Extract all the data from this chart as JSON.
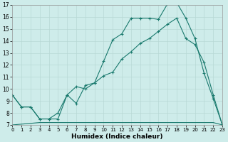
{
  "xlabel": "Humidex (Indice chaleur)",
  "xlim": [
    0,
    23
  ],
  "ylim": [
    7,
    17
  ],
  "background_color": "#ceecea",
  "grid_color": "#b8d8d5",
  "line_color": "#1a7a6e",
  "line1_x": [
    0,
    1,
    2,
    3,
    4,
    5,
    6,
    7,
    8,
    9,
    10,
    11,
    12,
    13,
    14,
    15,
    16,
    17,
    18,
    19,
    20,
    21,
    22,
    23
  ],
  "line1_y": [
    9.5,
    8.5,
    8.5,
    7.5,
    7.5,
    7.5,
    9.5,
    8.8,
    10.3,
    10.5,
    12.3,
    14.1,
    14.6,
    15.9,
    15.9,
    15.9,
    15.8,
    17.1,
    17.2,
    15.9,
    14.2,
    11.3,
    9.2,
    7.0
  ],
  "line2_x": [
    0,
    1,
    2,
    3,
    4,
    5,
    6,
    7,
    8,
    9,
    10,
    11,
    12,
    13,
    14,
    15,
    16,
    17,
    18,
    19,
    20,
    21,
    22,
    23
  ],
  "line2_y": [
    9.5,
    8.5,
    8.5,
    7.5,
    7.5,
    8.0,
    9.5,
    10.2,
    10.0,
    10.5,
    11.1,
    11.4,
    12.5,
    13.1,
    13.8,
    14.2,
    14.8,
    15.4,
    15.9,
    14.2,
    13.7,
    12.2,
    9.5,
    7.0
  ],
  "line3_x": [
    0,
    3,
    9,
    19,
    22,
    23
  ],
  "line3_y": [
    7.0,
    7.2,
    7.2,
    7.2,
    7.2,
    7.0
  ],
  "xticks": [
    0,
    1,
    2,
    3,
    4,
    5,
    6,
    7,
    8,
    9,
    10,
    11,
    12,
    13,
    14,
    15,
    16,
    17,
    18,
    19,
    20,
    21,
    22,
    23
  ],
  "yticks": [
    7,
    8,
    9,
    10,
    11,
    12,
    13,
    14,
    15,
    16,
    17
  ]
}
